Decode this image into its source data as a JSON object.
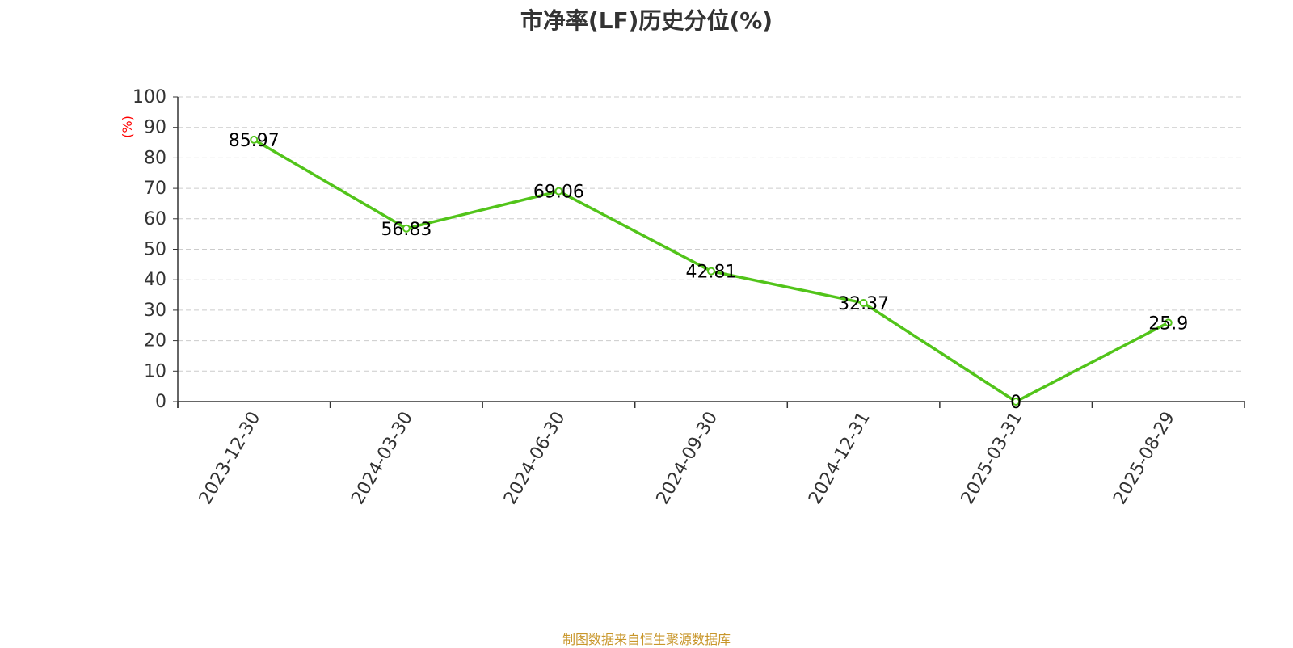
{
  "chart_data": {
    "type": "line",
    "title": "市净率(LF)历史分位(%)",
    "ylabel": "(%)",
    "xlabel": "",
    "categories": [
      "2023-12-30",
      "2024-03-30",
      "2024-06-30",
      "2024-09-30",
      "2024-12-31",
      "2025-03-31",
      "2025-08-29"
    ],
    "series": [
      {
        "values": [
          85.97,
          56.83,
          69.06,
          42.81,
          32.37,
          0,
          25.9
        ],
        "labels": [
          "85.97",
          "56.83",
          "69.06",
          "42.81",
          "32.37",
          "0",
          "25.9"
        ]
      }
    ],
    "ylim": [
      0,
      100
    ],
    "yticks": [
      "0",
      "10",
      "20",
      "30",
      "40",
      "50",
      "60",
      "70",
      "80",
      "90",
      "100"
    ],
    "grid": true,
    "legend": "none"
  },
  "footer": {
    "source": "制图数据来自恒生聚源数据库"
  },
  "colors": {
    "line": "#52c41a",
    "marker_fill": "#ffffff",
    "axis": "#333333",
    "grid": "#cccccc",
    "ylabel": "#ff0000",
    "footer": "#c8962a",
    "label": "#000000",
    "title": "#333333"
  }
}
